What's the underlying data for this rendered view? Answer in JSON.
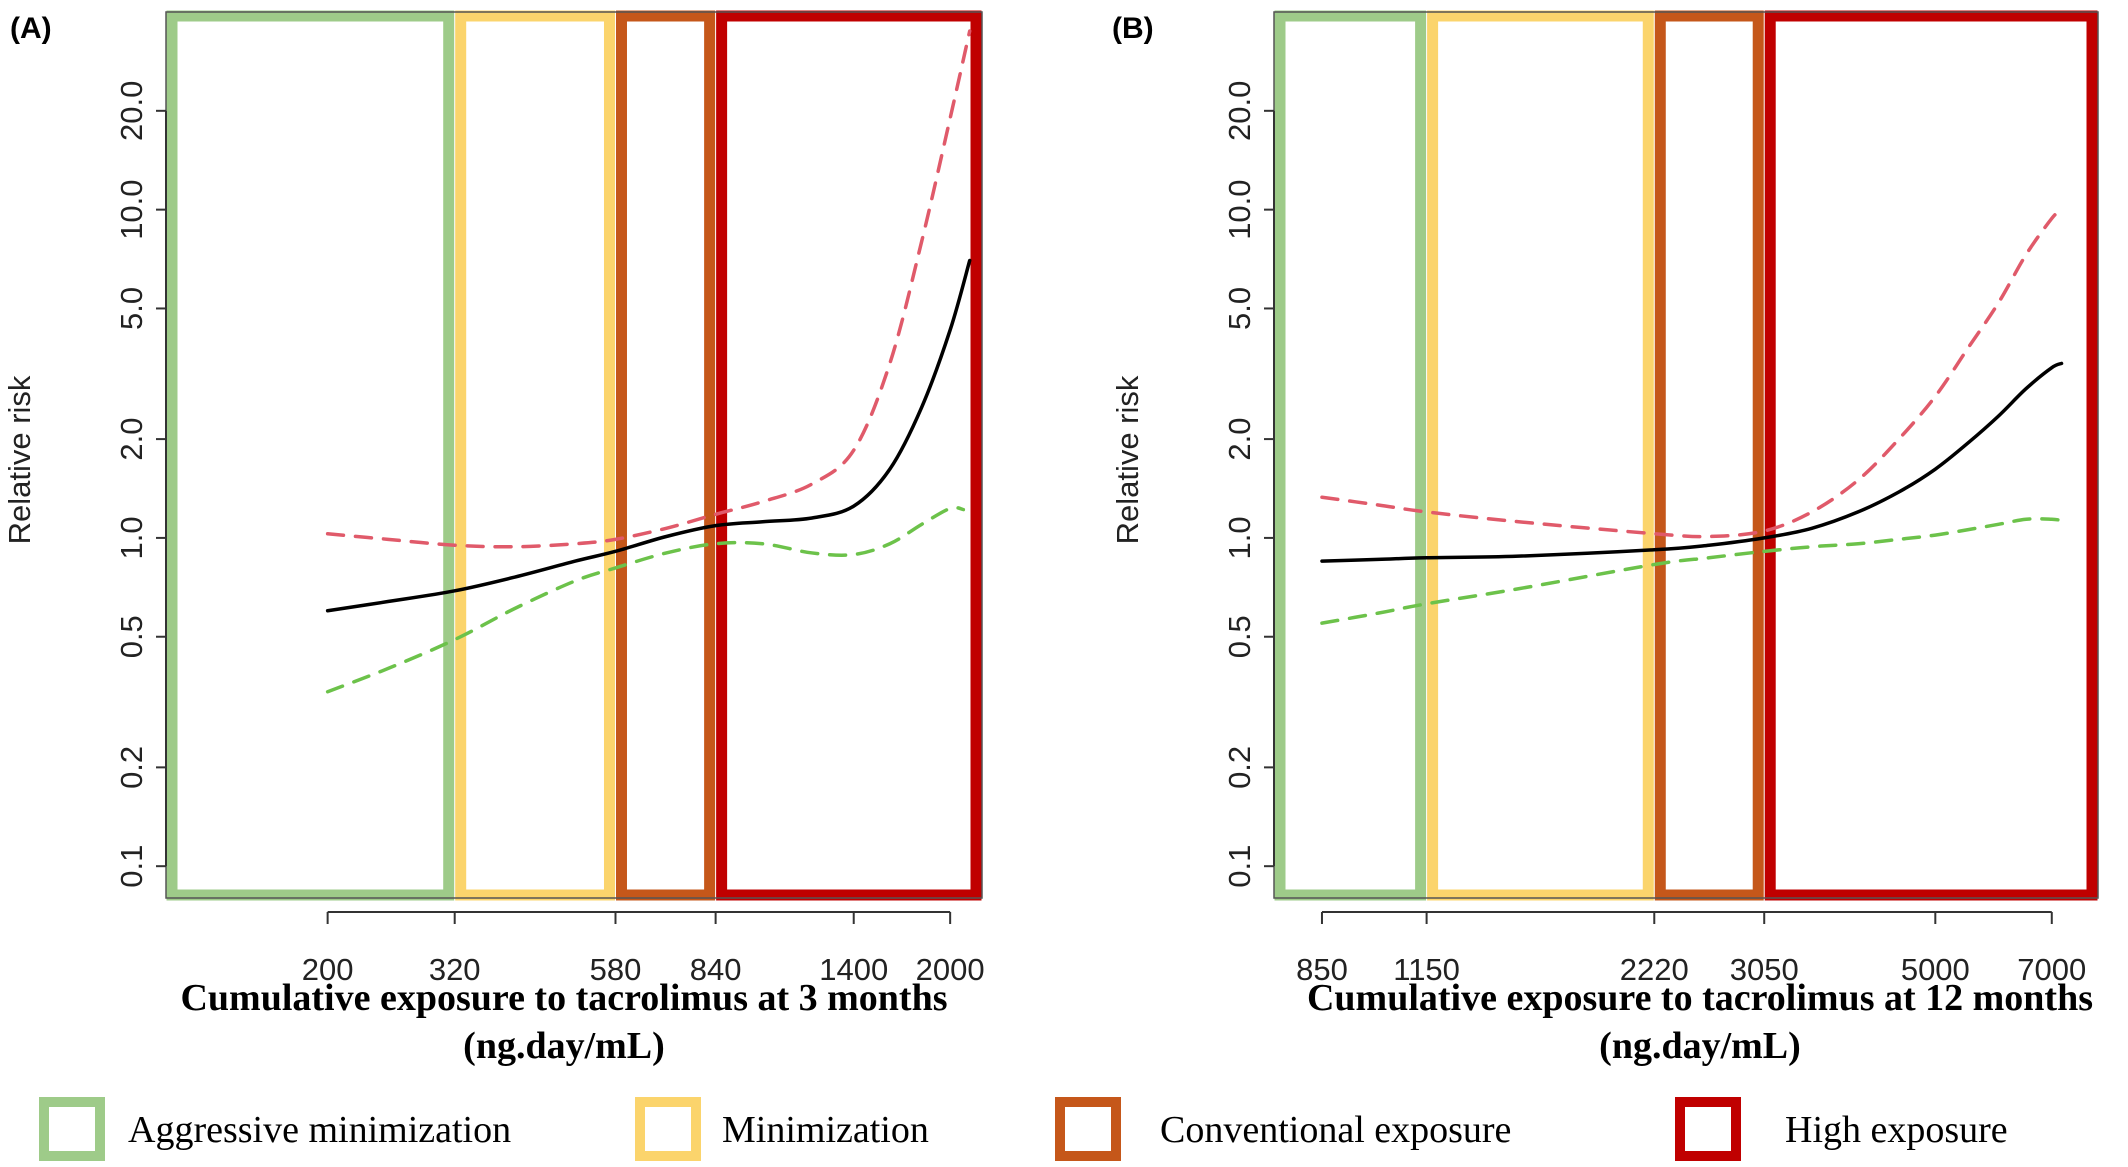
{
  "chart_data": [
    {
      "type": "line",
      "panel_label": "(A)",
      "xlabel": "Cumulative exposure to tacrolimus at 3 months",
      "xlabel_unit": "(ng.day/mL)",
      "ylabel": "Relative risk",
      "y_scale": "log",
      "ylim": [
        0.08,
        40
      ],
      "xlim": [
        110,
        2250
      ],
      "x_ticks": [
        200,
        320,
        580,
        840,
        1400,
        2000
      ],
      "x_tick_labels": [
        "200",
        "320",
        "580",
        "840",
        "1400",
        "2000"
      ],
      "y_ticks": [
        0.1,
        0.2,
        0.5,
        1.0,
        2.0,
        5.0,
        10.0,
        20.0
      ],
      "y_tick_labels": [
        "0.1",
        "0.2",
        "0.5",
        "1.0",
        "2.0",
        "5.0",
        "10.0",
        "20.0"
      ],
      "regions": [
        {
          "name": "Aggressive minimization",
          "from": 110,
          "to": 320,
          "color": "#9ecb89"
        },
        {
          "name": "Minimization",
          "from": 320,
          "to": 580,
          "color": "#fbd46c"
        },
        {
          "name": "Conventional exposure",
          "from": 580,
          "to": 840,
          "color": "#c5571a"
        },
        {
          "name": "High exposure",
          "from": 840,
          "to": 2250,
          "color": "#c00000"
        }
      ],
      "series": [
        {
          "role": "estimate",
          "color": "#000000",
          "dash": false,
          "x": [
            200,
            250,
            320,
            400,
            500,
            580,
            700,
            840,
            1000,
            1200,
            1400,
            1600,
            1800,
            2000,
            2150
          ],
          "y": [
            0.6,
            0.64,
            0.69,
            0.76,
            0.85,
            0.91,
            1.01,
            1.09,
            1.12,
            1.15,
            1.25,
            1.62,
            2.5,
            4.3,
            7.0
          ]
        },
        {
          "role": "upper",
          "color": "#e05a6a",
          "dash": true,
          "x": [
            200,
            250,
            320,
            400,
            500,
            580,
            700,
            840,
            1000,
            1200,
            1400,
            1600,
            1800,
            2000,
            2150
          ],
          "y": [
            1.03,
            0.99,
            0.95,
            0.94,
            0.96,
            0.99,
            1.07,
            1.18,
            1.29,
            1.46,
            1.85,
            3.4,
            8.0,
            19.0,
            35.0
          ]
        },
        {
          "role": "lower",
          "color": "#6cc24a",
          "dash": true,
          "x": [
            200,
            250,
            320,
            400,
            500,
            580,
            700,
            840,
            1000,
            1200,
            1400,
            1600,
            1800,
            2000,
            2100
          ],
          "y": [
            0.34,
            0.4,
            0.49,
            0.61,
            0.74,
            0.81,
            0.9,
            0.96,
            0.96,
            0.9,
            0.89,
            0.96,
            1.1,
            1.23,
            1.22
          ]
        }
      ]
    },
    {
      "type": "line",
      "panel_label": "(B)",
      "xlabel": "Cumulative exposure to tacrolimus at 12 months",
      "xlabel_unit": "(ng.day/mL)",
      "ylabel": "Relative risk",
      "y_scale": "log",
      "ylim": [
        0.08,
        40
      ],
      "xlim": [
        740,
        8000
      ],
      "x_ticks": [
        850,
        1150,
        2220,
        3050,
        5000,
        7000
      ],
      "x_tick_labels": [
        "850",
        "1150",
        "2220",
        "3050",
        "5000",
        "7000"
      ],
      "y_ticks": [
        0.1,
        0.2,
        0.5,
        1.0,
        2.0,
        5.0,
        10.0,
        20.0
      ],
      "y_tick_labels": [
        "0.1",
        "0.2",
        "0.5",
        "1.0",
        "2.0",
        "5.0",
        "10.0",
        "20.0"
      ],
      "regions": [
        {
          "name": "Aggressive minimization",
          "from": 740,
          "to": 1150,
          "color": "#9ecb89"
        },
        {
          "name": "Minimization",
          "from": 1150,
          "to": 2220,
          "color": "#fbd46c"
        },
        {
          "name": "Conventional exposure",
          "from": 2220,
          "to": 3050,
          "color": "#c5571a"
        },
        {
          "name": "High exposure",
          "from": 3050,
          "to": 8000,
          "color": "#c00000"
        }
      ],
      "series": [
        {
          "role": "estimate",
          "color": "#000000",
          "dash": false,
          "x": [
            850,
            1000,
            1150,
            1500,
            2220,
            2600,
            3050,
            3500,
            4000,
            4500,
            5000,
            5500,
            6000,
            6500,
            7000,
            7200
          ],
          "y": [
            0.85,
            0.86,
            0.87,
            0.88,
            0.92,
            0.95,
            1.0,
            1.07,
            1.2,
            1.38,
            1.62,
            1.95,
            2.35,
            2.85,
            3.3,
            3.4
          ]
        },
        {
          "role": "upper",
          "color": "#e05a6a",
          "dash": true,
          "x": [
            850,
            1000,
            1150,
            1500,
            2220,
            2600,
            3050,
            3500,
            4000,
            4500,
            5000,
            5500,
            6000,
            6500,
            7000,
            7200
          ],
          "y": [
            1.33,
            1.26,
            1.2,
            1.12,
            1.03,
            1.01,
            1.05,
            1.2,
            1.5,
            2.0,
            2.7,
            3.8,
            5.2,
            7.3,
            9.4,
            10.0
          ]
        },
        {
          "role": "lower",
          "color": "#6cc24a",
          "dash": true,
          "x": [
            850,
            1000,
            1150,
            1500,
            2220,
            2600,
            3050,
            3500,
            4000,
            4500,
            5000,
            5500,
            6000,
            6500,
            7000,
            7200
          ],
          "y": [
            0.55,
            0.59,
            0.63,
            0.7,
            0.83,
            0.87,
            0.91,
            0.94,
            0.96,
            0.99,
            1.02,
            1.06,
            1.1,
            1.14,
            1.14,
            1.13
          ]
        }
      ]
    }
  ],
  "legend": {
    "placement": "bottom",
    "items": [
      {
        "label": "Aggressive minimization",
        "color": "#9ecb89"
      },
      {
        "label": "Minimization",
        "color": "#fbd46c"
      },
      {
        "label": "Conventional exposure",
        "color": "#c5571a"
      },
      {
        "label": "High exposure",
        "color": "#c00000"
      }
    ]
  }
}
